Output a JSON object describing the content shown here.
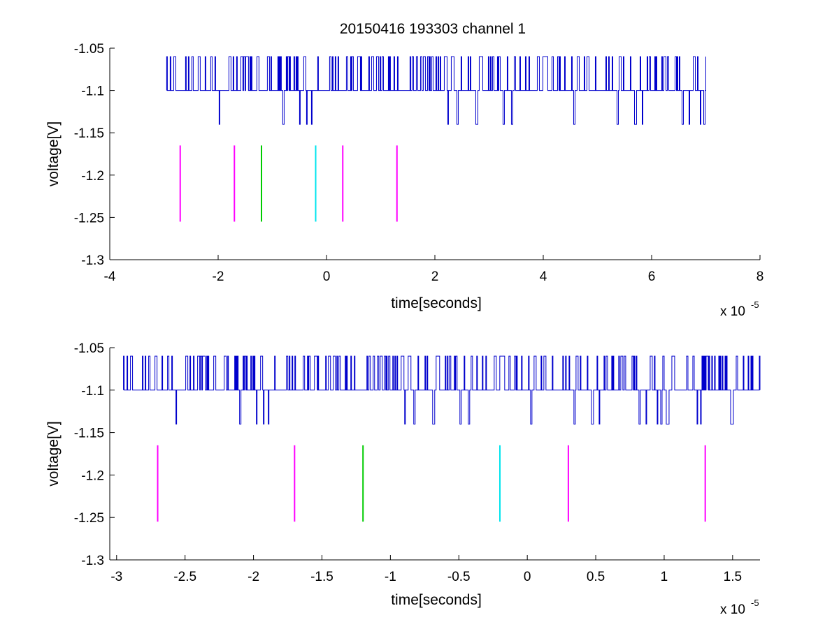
{
  "figure": {
    "title": "20150416 193303 channel 1",
    "colors": {
      "signal": "#0000cc",
      "marker_magenta": "#ff00ff",
      "marker_green": "#00cc00",
      "marker_cyan": "#00e5ee"
    }
  },
  "chart_data": [
    {
      "type": "line",
      "title": "20150416 193303 channel 1",
      "xlabel": "time[seconds]",
      "ylabel": "voltage[V]",
      "x_multiplier": "x 10",
      "x_multiplier_exp": "-5",
      "xlim": [
        -4,
        8
      ],
      "ylim": [
        -1.3,
        -1.05
      ],
      "xticks": [
        -4,
        -2,
        0,
        2,
        4,
        6,
        8
      ],
      "xtick_labels": [
        "-4",
        "-2",
        "0",
        "2",
        "4",
        "6",
        "8"
      ],
      "yticks": [
        -1.3,
        -1.25,
        -1.2,
        -1.15,
        -1.1,
        -1.05
      ],
      "ytick_labels": [
        "-1.3",
        "-1.25",
        "-1.2",
        "-1.15",
        "-1.1",
        "-1.05"
      ],
      "grid": false,
      "legend": "none",
      "series": [
        {
          "style": "signal",
          "x_range": [
            -2.95,
            7.0
          ],
          "levels": [
            -1.06,
            -1.1,
            -1.14
          ],
          "baseline": -1.1,
          "color": "#0000cc"
        }
      ],
      "markers": [
        {
          "x": -2.7,
          "y_range": [
            -1.255,
            -1.165
          ],
          "color": "#ff00ff"
        },
        {
          "x": -1.7,
          "y_range": [
            -1.255,
            -1.165
          ],
          "color": "#ff00ff"
        },
        {
          "x": -1.2,
          "y_range": [
            -1.255,
            -1.165
          ],
          "color": "#00cc00"
        },
        {
          "x": -0.2,
          "y_range": [
            -1.255,
            -1.165
          ],
          "color": "#00e5ee"
        },
        {
          "x": 0.3,
          "y_range": [
            -1.255,
            -1.165
          ],
          "color": "#ff00ff"
        },
        {
          "x": 1.3,
          "y_range": [
            -1.255,
            -1.165
          ],
          "color": "#ff00ff"
        }
      ]
    },
    {
      "type": "line",
      "title": "",
      "xlabel": "time[seconds]",
      "ylabel": "voltage[V]",
      "x_multiplier": "x 10",
      "x_multiplier_exp": "-5",
      "xlim": [
        -3.05,
        1.7
      ],
      "ylim": [
        -1.3,
        -1.05
      ],
      "xticks": [
        -3,
        -2.5,
        -2,
        -1.5,
        -1,
        -0.5,
        0,
        0.5,
        1,
        1.5
      ],
      "xtick_labels": [
        "-3",
        "-2.5",
        "-2",
        "-1.5",
        "-1",
        "-0.5",
        "0",
        "0.5",
        "1",
        "1.5"
      ],
      "yticks": [
        -1.3,
        -1.25,
        -1.2,
        -1.15,
        -1.1,
        -1.05
      ],
      "ytick_labels": [
        "-1.3",
        "-1.25",
        "-1.2",
        "-1.15",
        "-1.1",
        "-1.05"
      ],
      "grid": false,
      "legend": "none",
      "series": [
        {
          "style": "signal",
          "x_range": [
            -2.95,
            1.7
          ],
          "levels": [
            -1.06,
            -1.1,
            -1.14
          ],
          "baseline": -1.1,
          "color": "#0000cc"
        }
      ],
      "markers": [
        {
          "x": -2.7,
          "y_range": [
            -1.255,
            -1.165
          ],
          "color": "#ff00ff"
        },
        {
          "x": -1.7,
          "y_range": [
            -1.255,
            -1.165
          ],
          "color": "#ff00ff"
        },
        {
          "x": -1.2,
          "y_range": [
            -1.255,
            -1.165
          ],
          "color": "#00cc00"
        },
        {
          "x": -0.2,
          "y_range": [
            -1.255,
            -1.165
          ],
          "color": "#00e5ee"
        },
        {
          "x": 0.3,
          "y_range": [
            -1.255,
            -1.165
          ],
          "color": "#ff00ff"
        },
        {
          "x": 1.3,
          "y_range": [
            -1.255,
            -1.165
          ],
          "color": "#ff00ff"
        }
      ]
    }
  ]
}
